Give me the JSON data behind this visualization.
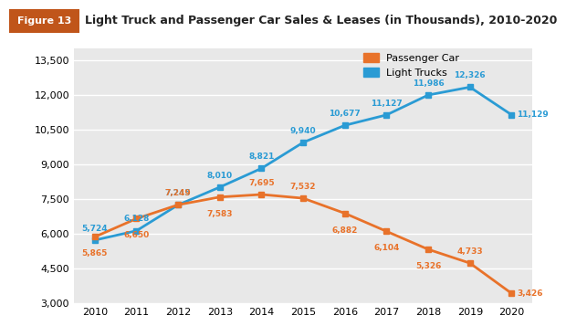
{
  "years": [
    2010,
    2011,
    2012,
    2013,
    2014,
    2015,
    2016,
    2017,
    2018,
    2019,
    2020
  ],
  "passenger_car": [
    5865,
    6650,
    7249,
    7583,
    7695,
    7532,
    6882,
    6104,
    5326,
    4733,
    3426
  ],
  "light_trucks": [
    5724,
    6128,
    7245,
    8010,
    8821,
    9940,
    10677,
    11127,
    11986,
    12326,
    11129
  ],
  "passenger_car_color": "#E8722A",
  "light_trucks_color": "#2A9BD4",
  "background_color": "#FFFFFF",
  "plot_bg_color": "#E8E8E8",
  "grid_color": "#FFFFFF",
  "header_bg_color": "#E8722A",
  "header_text_color": "#FFFFFF",
  "title": "Light Truck and Passenger Car Sales & Leases (in Thousands), 2010-2020",
  "figure_label": "Figure 13",
  "ylim": [
    3000,
    14000
  ],
  "yticks": [
    3000,
    4500,
    6000,
    7500,
    9000,
    10500,
    12000,
    13500
  ],
  "legend_labels": [
    "Passenger Car",
    "Light Trucks"
  ],
  "marker_size": 5,
  "line_width": 2.0,
  "label_fontsize": 6.5,
  "tick_fontsize": 8,
  "title_fontsize": 9
}
